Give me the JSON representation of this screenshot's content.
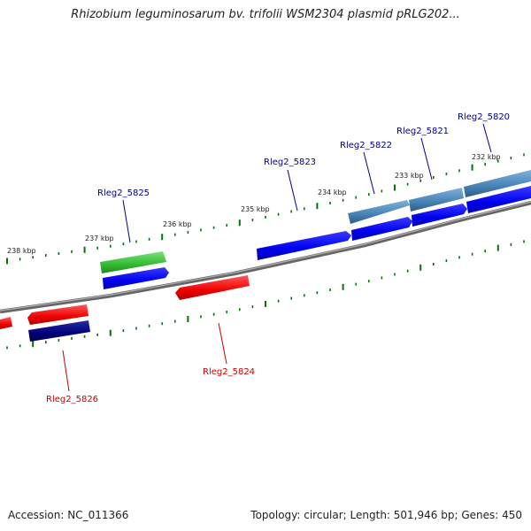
{
  "title": "Rhizobium leguminosarum bv. trifolii WSM2304 plasmid pRLG202...",
  "footer": {
    "accession": "Accession: NC_011366",
    "summary": "Topology: circular; Length: 501,946 bp; Genes: 450"
  },
  "ticks": [
    {
      "label": "238 kbp"
    },
    {
      "label": "237 kbp"
    },
    {
      "label": "236 kbp"
    },
    {
      "label": "235 kbp"
    },
    {
      "label": "234 kbp"
    },
    {
      "label": "233 kbp"
    },
    {
      "label": "232 kbp"
    }
  ],
  "genes": [
    {
      "label": "Rleg2_5825",
      "color": "#00008b"
    },
    {
      "label": "Rleg2_5823",
      "color": "#00008b"
    },
    {
      "label": "Rleg2_5822",
      "color": "#00008b"
    },
    {
      "label": "Rleg2_5821",
      "color": "#00008b"
    },
    {
      "label": "Rleg2_5820",
      "color": "#00008b"
    },
    {
      "label": "Rleg2_5824",
      "color": "#cc0000"
    },
    {
      "label": "Rleg2_5826",
      "color": "#cc0000"
    }
  ],
  "colors": {
    "backbone": "#808080",
    "tick": "#007700",
    "forward_cds": "#0000ee",
    "reverse_cds": "#ee0000",
    "forward_feature": "#3cc23c",
    "reverse_feature": "#00007a",
    "forward_steel": "#4682b4"
  }
}
